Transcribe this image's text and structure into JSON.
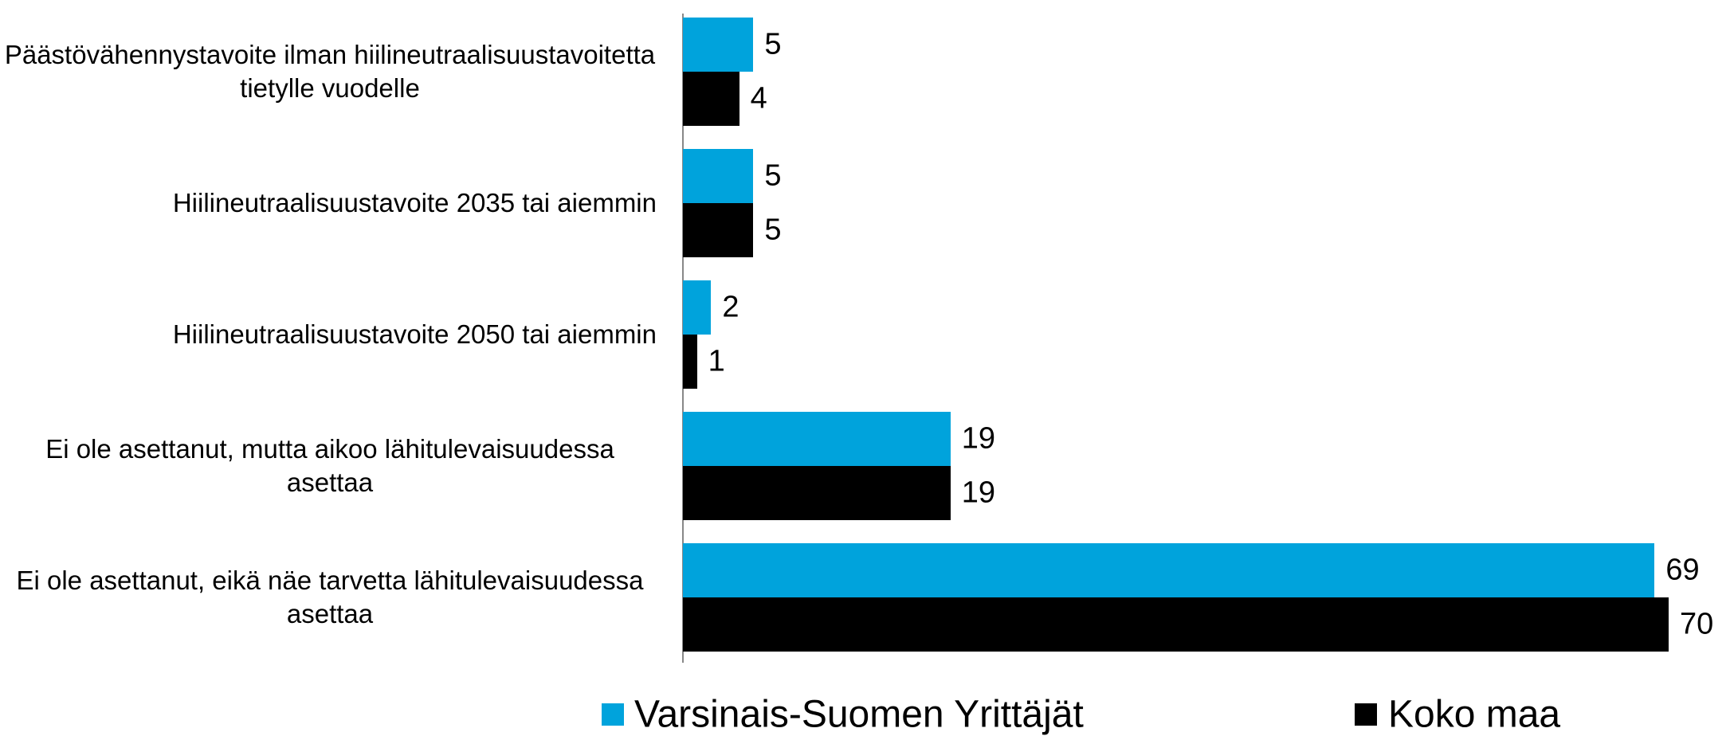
{
  "chart_data": {
    "type": "hbar",
    "categories": [
      "Päästövähennystavoite ilman hiilineutraalisuustavoitetta tietylle vuodelle",
      "Hiilineutraalisuustavoite 2035 tai aiemmin",
      "Hiilineutraalisuustavoite 2050 tai aiemmin",
      "Ei ole asettanut, mutta aikoo lähitulevaisuudessa asettaa",
      "Ei ole asettanut, eikä näe tarvetta lähitulevaisuudessa asettaa"
    ],
    "series": [
      {
        "name": "Varsinais-Suomen Yrittäjät",
        "color": "#00a3dc",
        "values": [
          5,
          5,
          2,
          19,
          69
        ]
      },
      {
        "name": "Koko maa",
        "color": "#000000",
        "values": [
          4,
          5,
          1,
          19,
          70
        ]
      }
    ],
    "legend": "bottom"
  }
}
